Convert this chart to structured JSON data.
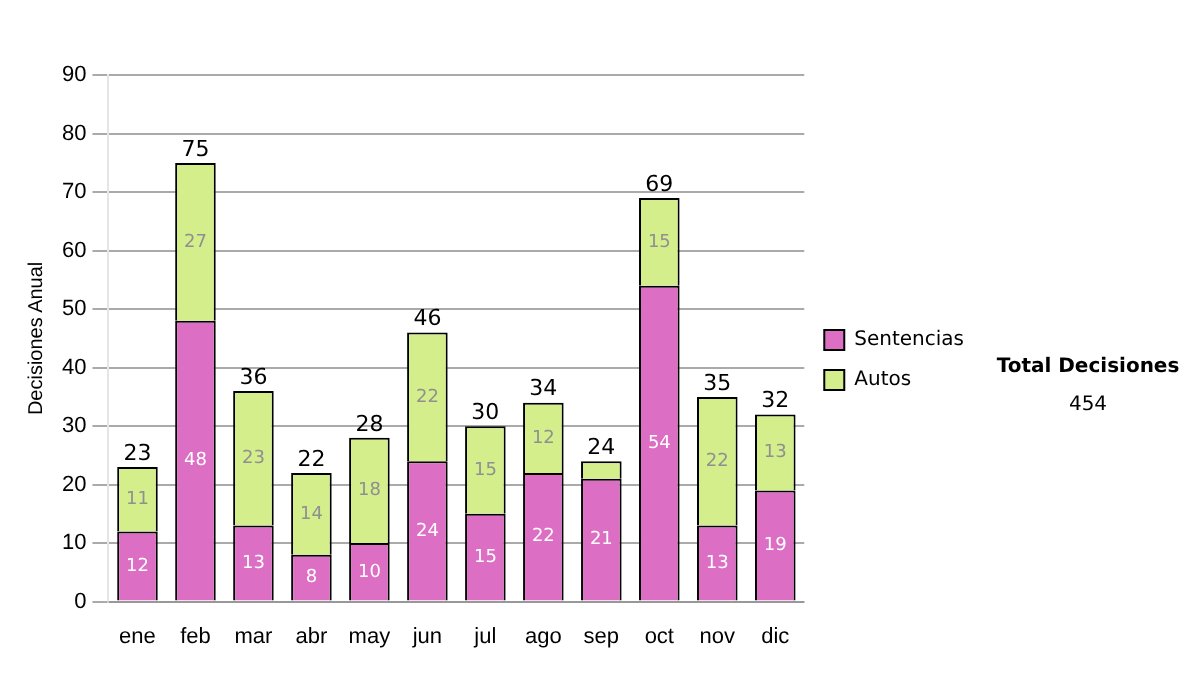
{
  "chart_data": {
    "type": "bar",
    "stacked": true,
    "ylabel": "Decisiones Anual",
    "categories": [
      "ene",
      "feb",
      "mar",
      "abr",
      "may",
      "jun",
      "jul",
      "ago",
      "sep",
      "oct",
      "nov",
      "dic"
    ],
    "series": [
      {
        "name": "Sentencias",
        "color": "#dc6ec4",
        "values": [
          12,
          48,
          13,
          8,
          10,
          24,
          15,
          22,
          21,
          54,
          13,
          19
        ],
        "value_labels": [
          "12",
          "48",
          "13",
          "8",
          "10",
          "24",
          "15",
          "22",
          "21",
          "54",
          "13",
          "19"
        ]
      },
      {
        "name": "Autos",
        "color": "#d4ee8c",
        "values": [
          11,
          27,
          23,
          14,
          18,
          22,
          15,
          12,
          3,
          15,
          22,
          13
        ],
        "value_labels": [
          "11",
          "27",
          "23",
          "14",
          "18",
          "22",
          "15",
          "12",
          null,
          "15",
          "22",
          "13"
        ]
      }
    ],
    "totals": [
      "23",
      "75",
      "36",
      "22",
      "28",
      "46",
      "30",
      "34",
      "24",
      "69",
      "35",
      "32"
    ],
    "ylim": [
      0,
      90
    ],
    "yticks": [
      0,
      10,
      20,
      30,
      40,
      50,
      60,
      70,
      80,
      90
    ],
    "grid": "y",
    "legend": "right",
    "annotations": [
      "Total Decisiones",
      "454"
    ]
  }
}
